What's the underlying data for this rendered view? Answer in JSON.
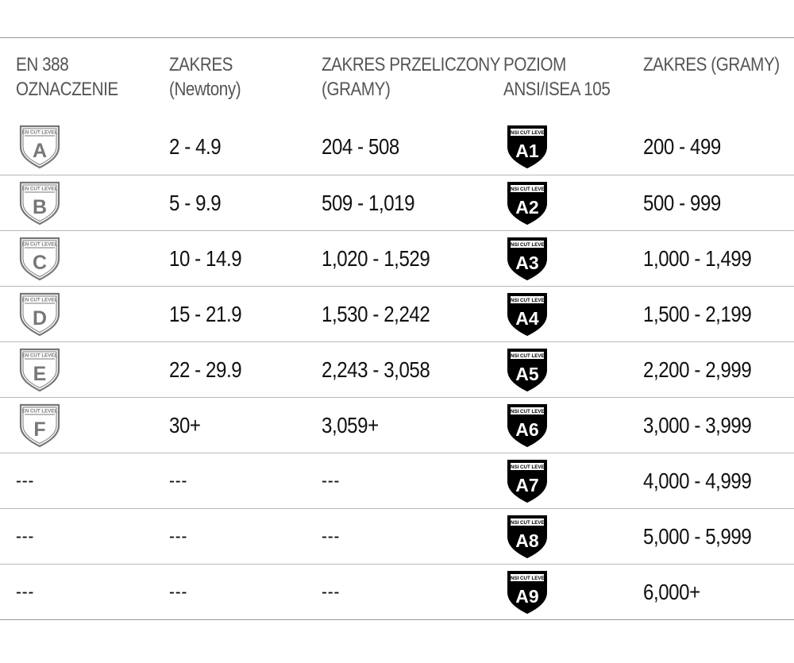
{
  "headers": [
    [
      "EN 388",
      "OZNACZENIE"
    ],
    [
      "ZAKRES",
      "(Newtony)"
    ],
    [
      "ZAKRES PRZELICZONY",
      "(GRAMY)"
    ],
    [
      "POZIOM",
      "ANSI/ISEA 105"
    ],
    [
      "ZAKRES (GRAMY)",
      ""
    ]
  ],
  "badge_caption": {
    "en": "EN CUT LEVEL",
    "ansi": "ANSI CUT LEVEL"
  },
  "rows": [
    {
      "en_level": "A",
      "newtons": "2 - 4.9",
      "grams_converted": "204 - 508",
      "ansi_level": "A1",
      "ansi_grams": "200 - 499"
    },
    {
      "en_level": "B",
      "newtons": "5 - 9.9",
      "grams_converted": "509 - 1,019",
      "ansi_level": "A2",
      "ansi_grams": "500 - 999"
    },
    {
      "en_level": "C",
      "newtons": "10 - 14.9",
      "grams_converted": "1,020 - 1,529",
      "ansi_level": "A3",
      "ansi_grams": "1,000 - 1,499"
    },
    {
      "en_level": "D",
      "newtons": "15 - 21.9",
      "grams_converted": "1,530 - 2,242",
      "ansi_level": "A4",
      "ansi_grams": "1,500 - 2,199"
    },
    {
      "en_level": "E",
      "newtons": "22 - 29.9",
      "grams_converted": "2,243 - 3,058",
      "ansi_level": "A5",
      "ansi_grams": "2,200 - 2,999"
    },
    {
      "en_level": "F",
      "newtons": "30+",
      "grams_converted": "3,059+",
      "ansi_level": "A6",
      "ansi_grams": "3,000 - 3,999"
    },
    {
      "en_level": "---",
      "newtons": "---",
      "grams_converted": "---",
      "ansi_level": "A7",
      "ansi_grams": "4,000 - 4,999"
    },
    {
      "en_level": "---",
      "newtons": "---",
      "grams_converted": "---",
      "ansi_level": "A8",
      "ansi_grams": "5,000 - 5,999"
    },
    {
      "en_level": "---",
      "newtons": "---",
      "grams_converted": "---",
      "ansi_level": "A9",
      "ansi_grams": "6,000+"
    }
  ],
  "colors": {
    "en_badge": "#777777",
    "ansi_badge": "#000000",
    "divider": "#b8b8b8"
  }
}
